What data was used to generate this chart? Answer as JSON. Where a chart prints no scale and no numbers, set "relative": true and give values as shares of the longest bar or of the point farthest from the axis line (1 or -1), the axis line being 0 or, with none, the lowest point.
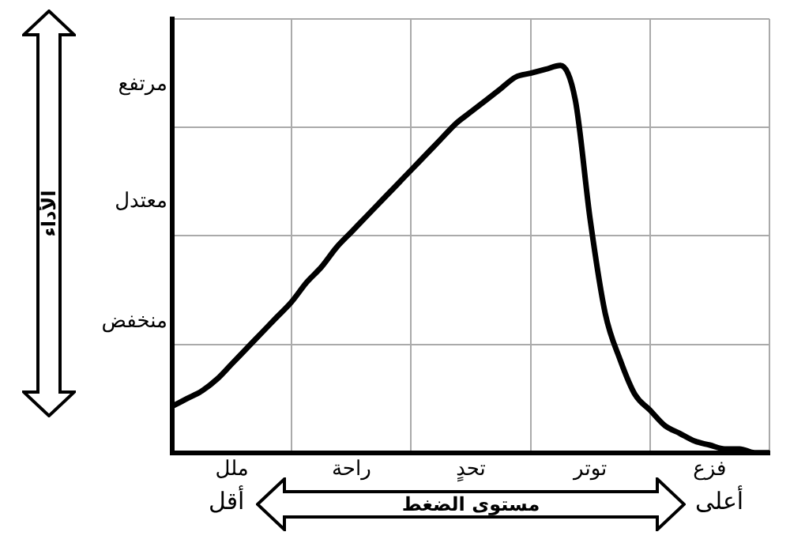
{
  "chart_data": {
    "type": "line",
    "relative": true,
    "xlabel": "مستوى الضغط",
    "annotations": [
      "الأداء",
      "منخفض",
      "معتدل",
      "مرتفع",
      "أقل",
      "أعلى"
    ],
    "categories": [
      null,
      null,
      null,
      null,
      "ملل",
      null,
      null,
      null,
      null,
      null,
      null,
      null,
      "راحة",
      null,
      null,
      null,
      null,
      null,
      null,
      null,
      "تحدٍ",
      null,
      null,
      null,
      null,
      null,
      null,
      null,
      "توتر",
      null,
      null,
      null,
      null,
      null,
      null,
      null,
      "فزع",
      null,
      null,
      null,
      null
    ],
    "grid": true,
    "legend": false,
    "marker": "none",
    "line_style": "solid",
    "series": [
      {
        "color": "#000000",
        "values": [
          0.12,
          0.14,
          0.16,
          0.19,
          0.23,
          0.27,
          0.31,
          0.35,
          0.39,
          0.44,
          0.48,
          0.53,
          0.57,
          0.61,
          0.65,
          0.69,
          0.73,
          0.77,
          0.81,
          0.85,
          0.88,
          0.91,
          0.94,
          0.97,
          0.98,
          0.99,
          1,
          0.91,
          0.6,
          0.36,
          0.24,
          0.15,
          0.11,
          0.07,
          0.05,
          0.03,
          0.02,
          0.01,
          0.01,
          0,
          0
        ]
      }
    ]
  }
}
